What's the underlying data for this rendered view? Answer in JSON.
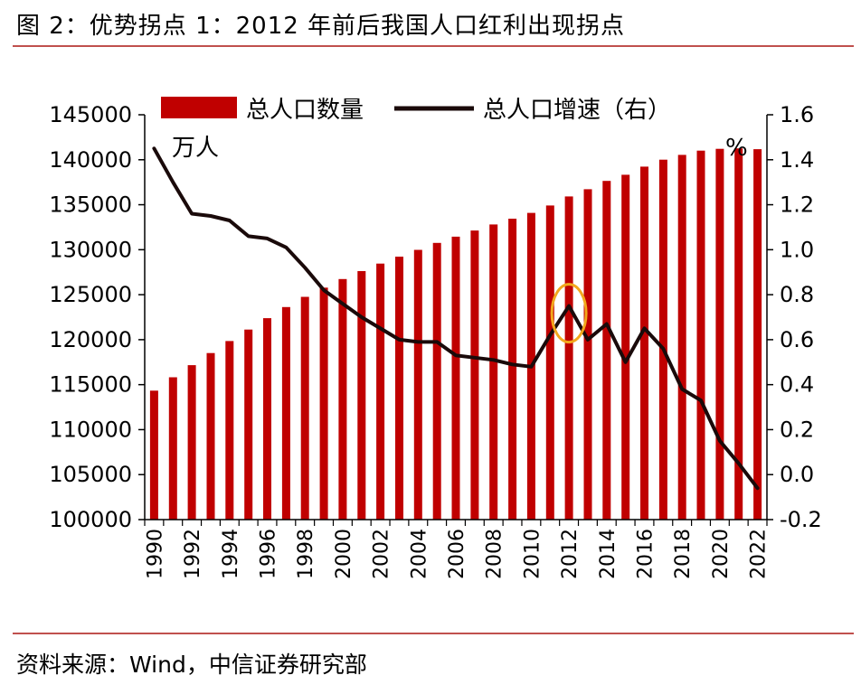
{
  "header": {
    "title": "图 2：优势拐点 1：2012 年前后我国人口红利出现拐点"
  },
  "footer": {
    "source": "资料来源：Wind，中信证券研究部"
  },
  "colors": {
    "bar": "#c00000",
    "line": "#1a0a0a",
    "rule": "#c0504d",
    "highlight": "#f2a81d"
  },
  "chart_data": {
    "type": "bar",
    "title": "",
    "legend": {
      "position": "top",
      "entries": [
        "总人口数量",
        "总人口增速（右）"
      ]
    },
    "left_axis": {
      "unit_label": "万人",
      "ylim": [
        100000,
        145000
      ],
      "ticks": [
        "100000",
        "105000",
        "110000",
        "115000",
        "120000",
        "125000",
        "130000",
        "135000",
        "140000",
        "145000"
      ]
    },
    "right_axis": {
      "unit_label": "%",
      "ylim": [
        -0.2,
        1.6
      ],
      "ticks": [
        "-0.2",
        "0.0",
        "0.2",
        "0.4",
        "0.6",
        "0.8",
        "1.0",
        "1.2",
        "1.4",
        "1.6"
      ]
    },
    "x": [
      "1990",
      "1991",
      "1992",
      "1993",
      "1994",
      "1995",
      "1996",
      "1997",
      "1998",
      "1999",
      "2000",
      "2001",
      "2002",
      "2003",
      "2004",
      "2005",
      "2006",
      "2007",
      "2008",
      "2009",
      "2010",
      "2011",
      "2012",
      "2013",
      "2014",
      "2015",
      "2016",
      "2017",
      "2018",
      "2019",
      "2020",
      "2021",
      "2022"
    ],
    "x_tick_labels": [
      "1990",
      "1992",
      "1994",
      "1996",
      "1998",
      "2000",
      "2002",
      "2004",
      "2006",
      "2008",
      "2010",
      "2012",
      "2014",
      "2016",
      "2018",
      "2020",
      "2022"
    ],
    "series": [
      {
        "name": "总人口数量",
        "type": "bar",
        "axis": "left",
        "values": [
          114333,
          115823,
          117171,
          118517,
          119850,
          121121,
          122389,
          123626,
          124761,
          125786,
          126743,
          127627,
          128453,
          129227,
          129988,
          130756,
          131448,
          132129,
          132802,
          133450,
          134091,
          134916,
          135922,
          136726,
          137646,
          138326,
          139232,
          140011,
          140541,
          141008,
          141212,
          141260,
          141175
        ]
      },
      {
        "name": "总人口增速（右）",
        "type": "line",
        "axis": "right",
        "values": [
          1.45,
          1.3,
          1.16,
          1.15,
          1.13,
          1.06,
          1.05,
          1.01,
          0.92,
          0.82,
          0.76,
          0.7,
          0.65,
          0.6,
          0.59,
          0.59,
          0.53,
          0.52,
          0.51,
          0.49,
          0.48,
          0.62,
          0.75,
          0.6,
          0.67,
          0.5,
          0.65,
          0.56,
          0.38,
          0.33,
          0.15,
          0.05,
          -0.06
        ]
      }
    ],
    "highlight_year": "2012"
  }
}
